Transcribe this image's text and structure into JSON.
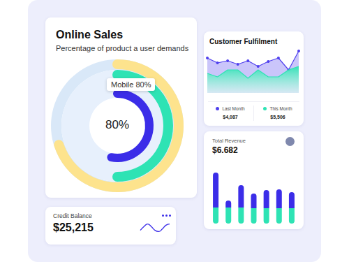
{
  "chart_data": [
    {
      "type": "radial",
      "title": "Online Sales",
      "subtitle": "Percentage of product a user demands",
      "annotations": [
        "Mobile 80%",
        "80%"
      ],
      "values": [
        53,
        50,
        70
      ],
      "colors": [
        "#3B2DE8",
        "#2EE3B4",
        "#FDE38D"
      ],
      "ylim": [
        0,
        100
      ],
      "tick_labels": false
    },
    {
      "type": "area",
      "title": "Customer Fulfilment",
      "categories": [
        null,
        null,
        null,
        null,
        null,
        null,
        null,
        null,
        null,
        null
      ],
      "series": [
        {
          "name": "Last Month",
          "color": "#5040EE",
          "marker": "circle",
          "total": "$4,087",
          "values": [
            50,
            43,
            46,
            41,
            46,
            38,
            45,
            50,
            33,
            60
          ]
        },
        {
          "name": "This Month",
          "color": "#2EE3B4",
          "marker": "none",
          "total": "$5,506",
          "values": [
            28,
            23,
            33,
            33,
            21,
            33,
            23,
            23,
            33,
            38
          ]
        }
      ],
      "ylim": [
        0,
        65
      ],
      "tick_labels": false,
      "legend": "bottom"
    },
    {
      "type": "bar",
      "title": "Total Revenue",
      "annotations": [
        "$6.682"
      ],
      "stacked": true,
      "categories": [
        null,
        null,
        null,
        null,
        null,
        null,
        null
      ],
      "series": [
        {
          "color": "#2EE3B4",
          "values": [
            23,
            23,
            23,
            22,
            22,
            22,
            22
          ]
        },
        {
          "color": "#3B2DE8",
          "values": [
            50,
            10,
            32,
            21,
            26,
            27,
            23
          ]
        }
      ],
      "ylim": [
        0,
        75
      ],
      "tick_labels": false
    },
    {
      "type": "line",
      "title": "Credit Balance",
      "annotations": [
        "$25,215"
      ],
      "categories": [
        null,
        null,
        null,
        null,
        null,
        null,
        null,
        null,
        null
      ],
      "values": [
        3,
        6,
        8,
        6,
        3,
        2,
        4,
        7,
        8
      ],
      "color": "#3B2DE8",
      "marker": "none",
      "ylim": [
        0,
        10
      ],
      "tick_labels": false
    }
  ]
}
